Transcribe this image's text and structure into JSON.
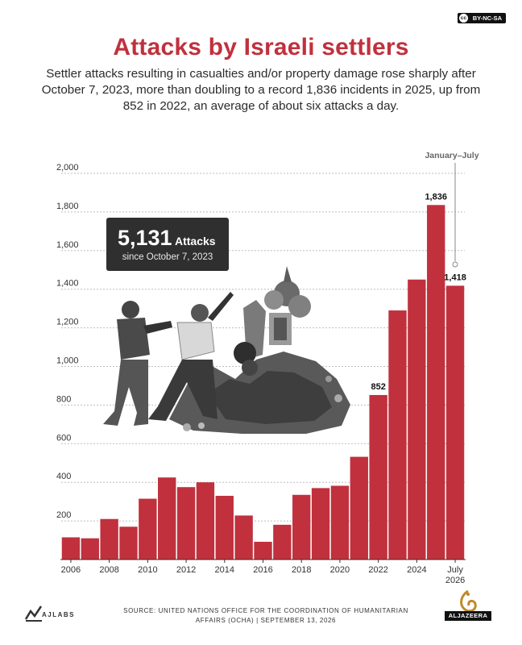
{
  "license": {
    "badge": "cc",
    "label": "BY-NC-SA"
  },
  "header": {
    "title": "Attacks by Israeli settlers",
    "subtitle": "Settler attacks resulting in casualties and/or property damage rose sharply after October 7, 2023, more than doubling to a record 1,836 incidents in 2025, up from 852 in 2022, an average of about six attacks a day."
  },
  "callout": {
    "number": "5,131",
    "unit": "Attacks",
    "since": "since October 7, 2023"
  },
  "chart_data": {
    "type": "bar",
    "title": "Attacks by Israeli settlers",
    "categories": [
      "2006",
      "2007",
      "2008",
      "2009",
      "2010",
      "2011",
      "2012",
      "2013",
      "2014",
      "2015",
      "2016",
      "2017",
      "2018",
      "2019",
      "2020",
      "2021",
      "2022",
      "2023",
      "2024",
      "2025",
      "July 2026"
    ],
    "values": [
      115,
      110,
      210,
      170,
      315,
      425,
      375,
      400,
      330,
      228,
      92,
      180,
      335,
      370,
      382,
      532,
      852,
      1290,
      1450,
      1836,
      1418
    ],
    "x_tick_labels": [
      "2006",
      "",
      "2008",
      "",
      "2010",
      "",
      "2012",
      "",
      "2014",
      "",
      "2016",
      "",
      "2018",
      "",
      "2020",
      "",
      "2022",
      "",
      "2024",
      "",
      "July"
    ],
    "x_tick_sublabel": "2026",
    "y_ticks": [
      200,
      400,
      600,
      800,
      "1,000",
      "1,200",
      "1,400",
      "1,600",
      "1,800",
      "2,000"
    ],
    "ylim": [
      0,
      2000
    ],
    "data_labels": {
      "2022": "852",
      "2025": "1,836",
      "July 2026": "1,418"
    },
    "annotation": "January–July",
    "bar_color": "#c0313d",
    "grid": true
  },
  "footer": {
    "source": "SOURCE: UNITED NATIONS OFFICE FOR THE COORDINATION OF HUMANITARIAN AFFAIRS (OCHA) |  SEPTEMBER 13, 2026",
    "ajlabs": "AJLABS",
    "aljazeera": "ALJAZEERA"
  }
}
